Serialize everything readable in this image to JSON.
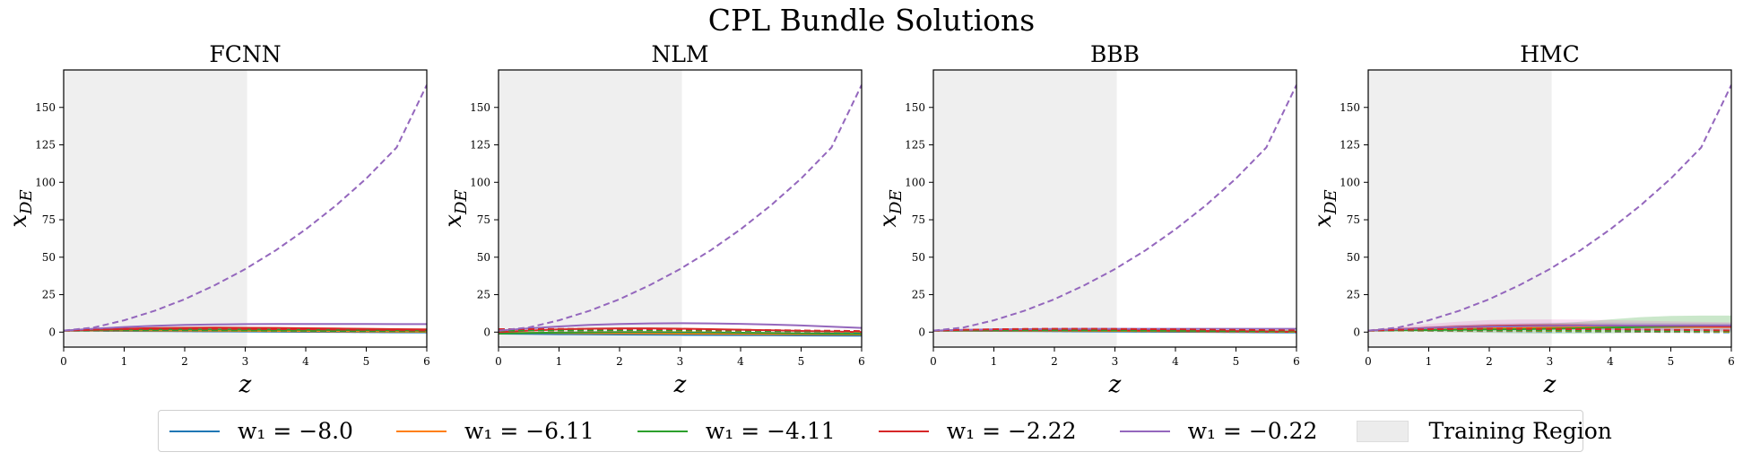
{
  "figure": {
    "title": "CPL Bundle Solutions"
  },
  "colors": {
    "series": [
      "#1f77b4",
      "#ff7f0e",
      "#2ca02c",
      "#d62728",
      "#9467bd"
    ],
    "training_region": "#e8e8e8",
    "axis": "#000000"
  },
  "legend": {
    "placement": "bottom-center",
    "items": [
      {
        "label": "w₁ = −8.0",
        "color": "#1f77b4"
      },
      {
        "label": "w₁ = −6.11",
        "color": "#ff7f0e"
      },
      {
        "label": "w₁ = −4.11",
        "color": "#2ca02c"
      },
      {
        "label": "w₁ = −2.22",
        "color": "#d62728"
      },
      {
        "label": "w₁ = −0.22",
        "color": "#9467bd"
      }
    ],
    "region_label": "Training Region"
  },
  "chart_data": [
    {
      "type": "line",
      "title": "FCNN",
      "xlabel": "z",
      "ylabel": "x_DE",
      "xlim": [
        0,
        6
      ],
      "ylim": [
        -10,
        175
      ],
      "xticks": [
        0,
        1,
        2,
        3,
        4,
        5,
        6
      ],
      "yticks": [
        0,
        25,
        50,
        75,
        100,
        125,
        150
      ],
      "training_region": [
        0,
        3.03
      ],
      "grid": false,
      "x": [
        0,
        0.5,
        1,
        1.5,
        2,
        2.5,
        3,
        3.5,
        4,
        4.5,
        5,
        5.5,
        6
      ],
      "series": [
        {
          "color": "#1f77b4",
          "style": "solid",
          "values": [
            1,
            0.9,
            0.8,
            0.7,
            0.6,
            0.5,
            0.4,
            0.3,
            0.2,
            0.1,
            0,
            -0.1,
            -0.2
          ]
        },
        {
          "color": "#ff7f0e",
          "style": "solid",
          "values": [
            1,
            1.1,
            1.1,
            1.1,
            1.0,
            1.0,
            0.9,
            0.8,
            0.7,
            0.6,
            0.5,
            0.4,
            0.3
          ]
        },
        {
          "color": "#2ca02c",
          "style": "solid",
          "values": [
            1,
            1.4,
            1.7,
            1.8,
            1.8,
            1.8,
            1.7,
            1.6,
            1.5,
            1.4,
            1.3,
            1.2,
            1.1
          ]
        },
        {
          "color": "#d62728",
          "style": "solid",
          "values": [
            1,
            1.7,
            2.3,
            2.7,
            2.9,
            3.0,
            2.9,
            2.8,
            2.6,
            2.4,
            2.2,
            2.0,
            1.8
          ]
        },
        {
          "color": "#9467bd",
          "style": "solid",
          "values": [
            1,
            2.3,
            3.4,
            4.2,
            4.8,
            5.1,
            5.3,
            5.4,
            5.4,
            5.4,
            5.4,
            5.3,
            5.3
          ]
        },
        {
          "color": "#1f77b4",
          "style": "dashed",
          "values": [
            1,
            1.0,
            0.9,
            0.8,
            0.7,
            0.6,
            0.5,
            0.4,
            0.3,
            0.2,
            0.1,
            0.0,
            -0.1
          ]
        },
        {
          "color": "#ff7f0e",
          "style": "dashed",
          "values": [
            1,
            1.1,
            1.1,
            1.0,
            1.0,
            0.9,
            0.8,
            0.7,
            0.6,
            0.5,
            0.4,
            0.3,
            0.2
          ]
        },
        {
          "color": "#2ca02c",
          "style": "dashed",
          "values": [
            1,
            1.2,
            1.3,
            1.3,
            1.3,
            1.2,
            1.1,
            1.0,
            0.9,
            0.8,
            0.7,
            0.6,
            0.5
          ]
        },
        {
          "color": "#d62728",
          "style": "dashed",
          "values": [
            1,
            1.5,
            1.9,
            2.1,
            2.2,
            2.2,
            2.1,
            2.0,
            1.9,
            1.7,
            1.5,
            1.3,
            1.1
          ]
        },
        {
          "color": "#9467bd",
          "style": "dashed",
          "values": [
            1,
            3.1,
            7.9,
            14.2,
            22.0,
            31.4,
            42.1,
            54.5,
            68.6,
            84.6,
            102.5,
            123.2,
            165.0
          ]
        }
      ]
    },
    {
      "type": "line",
      "title": "NLM",
      "xlabel": "z",
      "ylabel": "x_DE",
      "xlim": [
        0,
        6
      ],
      "ylim": [
        -10,
        175
      ],
      "xticks": [
        0,
        1,
        2,
        3,
        4,
        5,
        6
      ],
      "yticks": [
        0,
        25,
        50,
        75,
        100,
        125,
        150
      ],
      "training_region": [
        0,
        3.03
      ],
      "grid": false,
      "x": [
        0,
        0.5,
        1,
        1.5,
        2,
        2.5,
        3,
        3.5,
        4,
        4.5,
        5,
        5.5,
        6
      ],
      "series": [
        {
          "color": "#1f77b4",
          "style": "solid",
          "values": [
            -1,
            -1.2,
            -1.4,
            -1.5,
            -1.6,
            -1.7,
            -1.8,
            -1.9,
            -2.0,
            -2.1,
            -2.2,
            -2.3,
            -2.4
          ]
        },
        {
          "color": "#ff7f0e",
          "style": "solid",
          "values": [
            -0.5,
            -0.5,
            -0.6,
            -0.7,
            -0.8,
            -0.9,
            -1.0,
            -1.1,
            -1.2,
            -1.3,
            -1.4,
            -1.5,
            -1.6
          ]
        },
        {
          "color": "#2ca02c",
          "style": "solid",
          "values": [
            -1,
            -0.6,
            -0.3,
            -0.1,
            0.0,
            0.0,
            -0.1,
            -0.2,
            -0.4,
            -0.6,
            -0.8,
            -1.0,
            -1.2
          ]
        },
        {
          "color": "#d62728",
          "style": "solid",
          "values": [
            0,
            1.0,
            1.8,
            2.3,
            2.5,
            2.5,
            2.3,
            2.0,
            1.6,
            1.2,
            0.8,
            0.4,
            0.0
          ]
        },
        {
          "color": "#9467bd",
          "style": "solid",
          "values": [
            1,
            2.5,
            3.8,
            4.8,
            5.4,
            5.8,
            5.9,
            5.8,
            5.5,
            5.0,
            4.4,
            3.6,
            2.8
          ]
        },
        {
          "color": "#1f77b4",
          "style": "dashed",
          "values": [
            1,
            1.0,
            0.9,
            0.8,
            0.7,
            0.6,
            0.5,
            0.4,
            0.3,
            0.2,
            0.1,
            0.0,
            -0.1
          ]
        },
        {
          "color": "#ff7f0e",
          "style": "dashed",
          "values": [
            1,
            1.1,
            1.1,
            1.0,
            1.0,
            0.9,
            0.8,
            0.7,
            0.6,
            0.5,
            0.4,
            0.3,
            0.2
          ]
        },
        {
          "color": "#2ca02c",
          "style": "dashed",
          "values": [
            1,
            1.2,
            1.3,
            1.3,
            1.3,
            1.2,
            1.1,
            1.0,
            0.9,
            0.8,
            0.7,
            0.6,
            0.5
          ]
        },
        {
          "color": "#d62728",
          "style": "dashed",
          "values": [
            2,
            2.0,
            2.1,
            2.1,
            2.1,
            2.0,
            1.9,
            1.7,
            1.5,
            1.3,
            1.1,
            0.9,
            0.7
          ]
        },
        {
          "color": "#9467bd",
          "style": "dashed",
          "values": [
            1,
            3.1,
            7.9,
            14.2,
            22.0,
            31.4,
            42.1,
            54.5,
            68.6,
            84.6,
            102.5,
            123.2,
            165.0
          ]
        }
      ]
    },
    {
      "type": "line",
      "title": "BBB",
      "xlabel": "z",
      "ylabel": "x_DE",
      "xlim": [
        0,
        6
      ],
      "ylim": [
        -10,
        175
      ],
      "xticks": [
        0,
        1,
        2,
        3,
        4,
        5,
        6
      ],
      "yticks": [
        0,
        25,
        50,
        75,
        100,
        125,
        150
      ],
      "training_region": [
        0,
        3.03
      ],
      "grid": false,
      "x": [
        0,
        0.5,
        1,
        1.5,
        2,
        2.5,
        3,
        3.5,
        4,
        4.5,
        5,
        5.5,
        6
      ],
      "series": [
        {
          "color": "#1f77b4",
          "style": "solid",
          "values": [
            1,
            0.9,
            0.8,
            0.7,
            0.6,
            0.5,
            0.4,
            0.3,
            0.2,
            0.1,
            0.0,
            -0.1,
            -0.2
          ]
        },
        {
          "color": "#ff7f0e",
          "style": "solid",
          "values": [
            1,
            1.0,
            1.0,
            0.9,
            0.9,
            0.8,
            0.8,
            0.7,
            0.6,
            0.5,
            0.4,
            0.3,
            0.2
          ]
        },
        {
          "color": "#2ca02c",
          "style": "solid",
          "values": [
            1,
            1.1,
            1.2,
            1.2,
            1.2,
            1.1,
            1.1,
            1.0,
            0.9,
            0.8,
            0.7,
            0.6,
            0.5
          ]
        },
        {
          "color": "#d62728",
          "style": "solid",
          "values": [
            1,
            1.2,
            1.3,
            1.4,
            1.4,
            1.3,
            1.2,
            1.1,
            1.0,
            0.8,
            0.6,
            0.4,
            0.2
          ]
        },
        {
          "color": "#9467bd",
          "style": "solid",
          "values": [
            1,
            1.5,
            1.8,
            2.0,
            2.1,
            2.2,
            2.2,
            2.2,
            2.2,
            2.2,
            2.2,
            2.2,
            2.2
          ]
        },
        {
          "color": "#1f77b4",
          "style": "dashed",
          "values": [
            1,
            1.0,
            0.9,
            0.8,
            0.7,
            0.6,
            0.5,
            0.4,
            0.3,
            0.2,
            0.1,
            0.0,
            -0.1
          ]
        },
        {
          "color": "#ff7f0e",
          "style": "dashed",
          "values": [
            1,
            1.1,
            1.1,
            1.0,
            1.0,
            0.9,
            0.8,
            0.7,
            0.6,
            0.5,
            0.4,
            0.3,
            0.2
          ]
        },
        {
          "color": "#2ca02c",
          "style": "dashed",
          "values": [
            1,
            1.2,
            1.3,
            1.3,
            1.3,
            1.2,
            1.1,
            1.0,
            0.9,
            0.8,
            0.7,
            0.6,
            0.5
          ]
        },
        {
          "color": "#d62728",
          "style": "dashed",
          "values": [
            1,
            1.5,
            1.9,
            2.1,
            2.2,
            2.2,
            2.1,
            2.0,
            1.9,
            1.7,
            1.5,
            1.3,
            1.1
          ]
        },
        {
          "color": "#9467bd",
          "style": "dashed",
          "values": [
            1,
            3.1,
            7.9,
            14.2,
            22.0,
            31.4,
            42.1,
            54.5,
            68.6,
            84.6,
            102.5,
            123.2,
            165.0
          ]
        }
      ]
    },
    {
      "type": "line",
      "title": "HMC",
      "xlabel": "z",
      "ylabel": "x_DE",
      "xlim": [
        0,
        6
      ],
      "ylim": [
        -10,
        175
      ],
      "xticks": [
        0,
        1,
        2,
        3,
        4,
        5,
        6
      ],
      "yticks": [
        0,
        25,
        50,
        75,
        100,
        125,
        150
      ],
      "training_region": [
        0,
        3.03
      ],
      "grid": false,
      "x": [
        0,
        0.5,
        1,
        1.5,
        2,
        2.5,
        3,
        3.5,
        4,
        4.5,
        5,
        5.5,
        6
      ],
      "bands": [
        {
          "color": "#2ca02c",
          "lower": [
            1,
            0.6,
            0.2,
            -0.2,
            -0.5,
            -0.8,
            -1.0,
            -1.0,
            -0.8,
            -0.6,
            -0.4,
            -0.3,
            -0.2
          ],
          "upper": [
            1,
            1.8,
            2.6,
            3.4,
            4.2,
            5.0,
            5.8,
            6.8,
            8.5,
            10.0,
            10.8,
            11.0,
            11.0
          ]
        },
        {
          "color": "#e377c2",
          "lower": [
            1,
            1.4,
            1.8,
            2.0,
            2.0,
            2.0,
            1.8,
            1.5,
            1.2,
            1.0,
            0.8,
            0.6,
            0.5
          ],
          "upper": [
            1,
            3.5,
            5.5,
            7.0,
            8.0,
            8.5,
            8.5,
            8.3,
            8.0,
            7.6,
            7.2,
            6.8,
            6.5
          ]
        },
        {
          "color": "#9467bd",
          "lower": [
            1,
            1.2,
            1.4,
            1.5,
            1.6,
            1.6,
            1.6,
            1.5,
            1.4,
            1.3,
            1.2,
            1.1,
            1.0
          ],
          "upper": [
            1,
            2.6,
            4.0,
            5.0,
            5.6,
            6.0,
            6.2,
            6.3,
            6.3,
            6.2,
            6.1,
            6.0,
            5.9
          ]
        }
      ],
      "series": [
        {
          "color": "#1f77b4",
          "style": "solid",
          "values": [
            1,
            1.5,
            2.0,
            2.4,
            2.8,
            3.1,
            3.3,
            3.5,
            3.6,
            3.7,
            3.8,
            3.8,
            3.8
          ]
        },
        {
          "color": "#ff7f0e",
          "style": "solid",
          "values": [
            1,
            1.4,
            1.8,
            2.2,
            2.5,
            2.8,
            3.0,
            3.2,
            3.3,
            3.4,
            3.5,
            3.5,
            3.5
          ]
        },
        {
          "color": "#2ca02c",
          "style": "solid",
          "values": [
            1,
            1.2,
            1.4,
            1.6,
            1.8,
            2.0,
            2.3,
            2.6,
            3.0,
            3.4,
            3.7,
            3.9,
            4.0
          ]
        },
        {
          "color": "#d62728",
          "style": "solid",
          "values": [
            1,
            2.0,
            2.9,
            3.6,
            4.1,
            4.4,
            4.5,
            4.5,
            4.4,
            4.3,
            4.1,
            3.9,
            3.7
          ]
        },
        {
          "color": "#9467bd",
          "style": "solid",
          "values": [
            1,
            1.9,
            2.7,
            3.3,
            3.7,
            4.0,
            4.2,
            4.3,
            4.4,
            4.4,
            4.4,
            4.4,
            4.4
          ]
        },
        {
          "color": "#1f77b4",
          "style": "dashed",
          "values": [
            1,
            1.0,
            0.9,
            0.8,
            0.7,
            0.6,
            0.5,
            0.4,
            0.3,
            0.2,
            0.1,
            0.0,
            -0.1
          ]
        },
        {
          "color": "#ff7f0e",
          "style": "dashed",
          "values": [
            1,
            1.1,
            1.1,
            1.0,
            1.0,
            0.9,
            0.8,
            0.7,
            0.6,
            0.5,
            0.4,
            0.3,
            0.2
          ]
        },
        {
          "color": "#2ca02c",
          "style": "dashed",
          "values": [
            1,
            1.2,
            1.3,
            1.3,
            1.3,
            1.2,
            1.1,
            1.0,
            0.9,
            0.8,
            0.7,
            0.6,
            0.5
          ]
        },
        {
          "color": "#d62728",
          "style": "dashed",
          "values": [
            1,
            1.5,
            1.9,
            2.1,
            2.2,
            2.2,
            2.1,
            2.0,
            1.9,
            1.7,
            1.5,
            1.3,
            1.1
          ]
        },
        {
          "color": "#9467bd",
          "style": "dashed",
          "values": [
            1,
            3.1,
            7.9,
            14.2,
            22.0,
            31.4,
            42.1,
            54.5,
            68.6,
            84.6,
            102.5,
            123.2,
            165.0
          ]
        }
      ]
    }
  ]
}
